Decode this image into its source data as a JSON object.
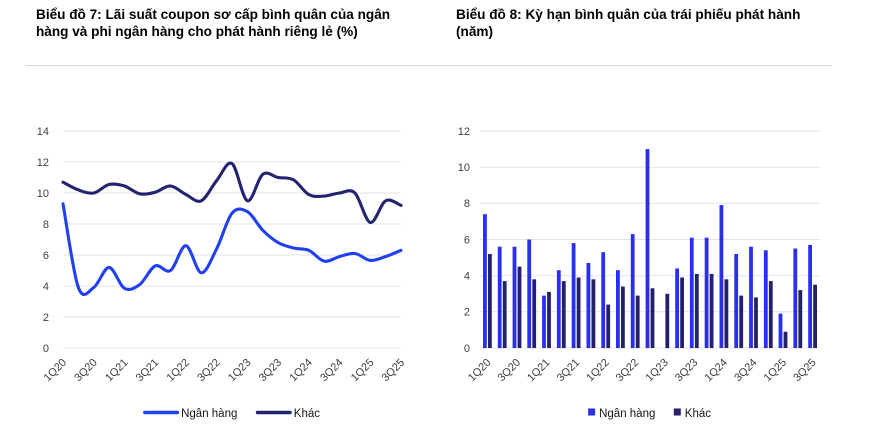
{
  "chart_data": [
    {
      "id": "chart7",
      "type": "line",
      "title": "Biểu đồ 7: Lãi suất coupon sơ cấp bình quân của ngân hàng và phi ngân hàng cho phát hành riêng lẻ (%)",
      "categories": [
        "1Q20",
        "2Q20",
        "3Q20",
        "4Q20",
        "1Q21",
        "2Q21",
        "3Q21",
        "4Q21",
        "1Q22",
        "2Q22",
        "3Q22",
        "4Q22",
        "1Q23",
        "2Q23",
        "3Q23",
        "4Q23",
        "1Q24",
        "2Q24",
        "3Q24",
        "4Q24",
        "1Q25",
        "2Q25",
        "3Q25"
      ],
      "x_tick_labels": [
        "1Q20",
        "3Q20",
        "1Q21",
        "3Q21",
        "1Q22",
        "3Q22",
        "1Q23",
        "3Q23",
        "1Q24",
        "3Q24",
        "1Q25",
        "3Q25"
      ],
      "ylim": [
        0,
        14
      ],
      "yticks": [
        0,
        2,
        4,
        6,
        8,
        10,
        12,
        14
      ],
      "grid": true,
      "legend_position": "bottom",
      "series": [
        {
          "name": "Ngân hàng",
          "color": "#2140f0",
          "values": [
            9.3,
            3.9,
            3.9,
            5.2,
            3.85,
            4.1,
            5.3,
            5.0,
            6.6,
            4.85,
            6.4,
            8.7,
            8.8,
            7.6,
            6.8,
            6.45,
            6.3,
            5.6,
            5.9,
            6.1,
            5.65,
            5.9,
            6.3
          ]
        },
        {
          "name": "Khác",
          "color": "#232470",
          "values": [
            10.7,
            10.2,
            10.0,
            10.55,
            10.45,
            9.95,
            10.05,
            10.45,
            9.9,
            9.5,
            10.8,
            11.9,
            9.5,
            11.2,
            11.0,
            10.85,
            9.9,
            9.8,
            10.0,
            10.0,
            8.1,
            9.5,
            9.2
          ]
        }
      ]
    },
    {
      "id": "chart8",
      "type": "bar",
      "title": "Biểu đồ 8: Kỳ hạn bình quân của trái phiếu phát hành (năm)",
      "categories": [
        "1Q20",
        "2Q20",
        "3Q20",
        "4Q20",
        "1Q21",
        "2Q21",
        "3Q21",
        "4Q21",
        "1Q22",
        "2Q22",
        "3Q22",
        "4Q22",
        "1Q23",
        "2Q23",
        "3Q23",
        "4Q23",
        "1Q24",
        "2Q24",
        "3Q24",
        "4Q24",
        "1Q25",
        "2Q25",
        "3Q25"
      ],
      "x_tick_labels": [
        "1Q20",
        "3Q20",
        "1Q21",
        "3Q21",
        "1Q22",
        "3Q22",
        "1Q23",
        "3Q23",
        "1Q24",
        "3Q24",
        "1Q25",
        "3Q25"
      ],
      "ylim": [
        0,
        12
      ],
      "yticks": [
        0,
        2,
        4,
        6,
        8,
        10,
        12
      ],
      "grid": true,
      "legend_position": "bottom",
      "series": [
        {
          "name": "Ngân hàng",
          "color": "#2a2ef0",
          "values": [
            7.4,
            5.6,
            5.6,
            6.0,
            2.9,
            4.3,
            5.8,
            4.7,
            5.3,
            4.3,
            6.3,
            11.0,
            0,
            4.4,
            6.1,
            6.1,
            7.9,
            5.2,
            5.6,
            5.4,
            1.9,
            5.5,
            5.7
          ]
        },
        {
          "name": "Khác",
          "color": "#232268",
          "values": [
            5.2,
            3.7,
            4.5,
            3.8,
            3.1,
            3.7,
            3.9,
            3.8,
            2.4,
            3.4,
            2.9,
            3.3,
            3.0,
            3.9,
            4.1,
            4.1,
            3.8,
            2.9,
            2.8,
            3.7,
            0.9,
            3.2,
            3.5
          ]
        }
      ]
    }
  ]
}
